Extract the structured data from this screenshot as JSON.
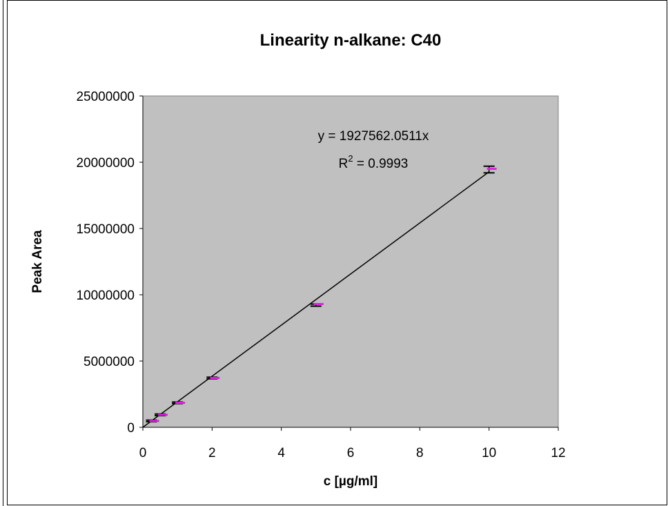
{
  "chart_data": {
    "type": "scatter",
    "title": "Linearity n-alkane: C40",
    "xlabel": "c [µg/ml]",
    "ylabel": "Peak Area",
    "xlim": [
      0,
      12
    ],
    "ylim": [
      0,
      25000000
    ],
    "x_ticks": [
      "0",
      "2",
      "4",
      "6",
      "8",
      "10",
      "12"
    ],
    "y_ticks": [
      "0",
      "5000000",
      "10000000",
      "15000000",
      "20000000",
      "25000000"
    ],
    "plot_background": "#c0c0c0",
    "grid": false,
    "series": [
      {
        "color": "#000000",
        "marker": "error-bar",
        "points": [
          {
            "x": 0.25,
            "y": 480000,
            "err": 60000
          },
          {
            "x": 0.5,
            "y": 940000,
            "err": 60000
          },
          {
            "x": 1.0,
            "y": 1850000,
            "err": 60000
          },
          {
            "x": 2.0,
            "y": 3720000,
            "err": 60000
          },
          {
            "x": 5.0,
            "y": 9220000,
            "err": 80000
          },
          {
            "x": 10.0,
            "y": 19450000,
            "err": 250000
          }
        ]
      },
      {
        "color": "#e020e0",
        "marker": "dash",
        "points": [
          {
            "x": 0.25,
            "y": 480000
          },
          {
            "x": 0.5,
            "y": 940000
          },
          {
            "x": 1.0,
            "y": 1850000
          },
          {
            "x": 2.0,
            "y": 3720000
          },
          {
            "x": 5.0,
            "y": 9300000
          },
          {
            "x": 10.0,
            "y": 19500000
          }
        ]
      }
    ],
    "trendline": {
      "slope": 1927562.0511,
      "x_range": [
        0,
        10
      ],
      "equation": "y = 1927562.0511x",
      "r2_label": "R",
      "r2_sup": "2",
      "r2_value": " = 0.9993"
    }
  }
}
